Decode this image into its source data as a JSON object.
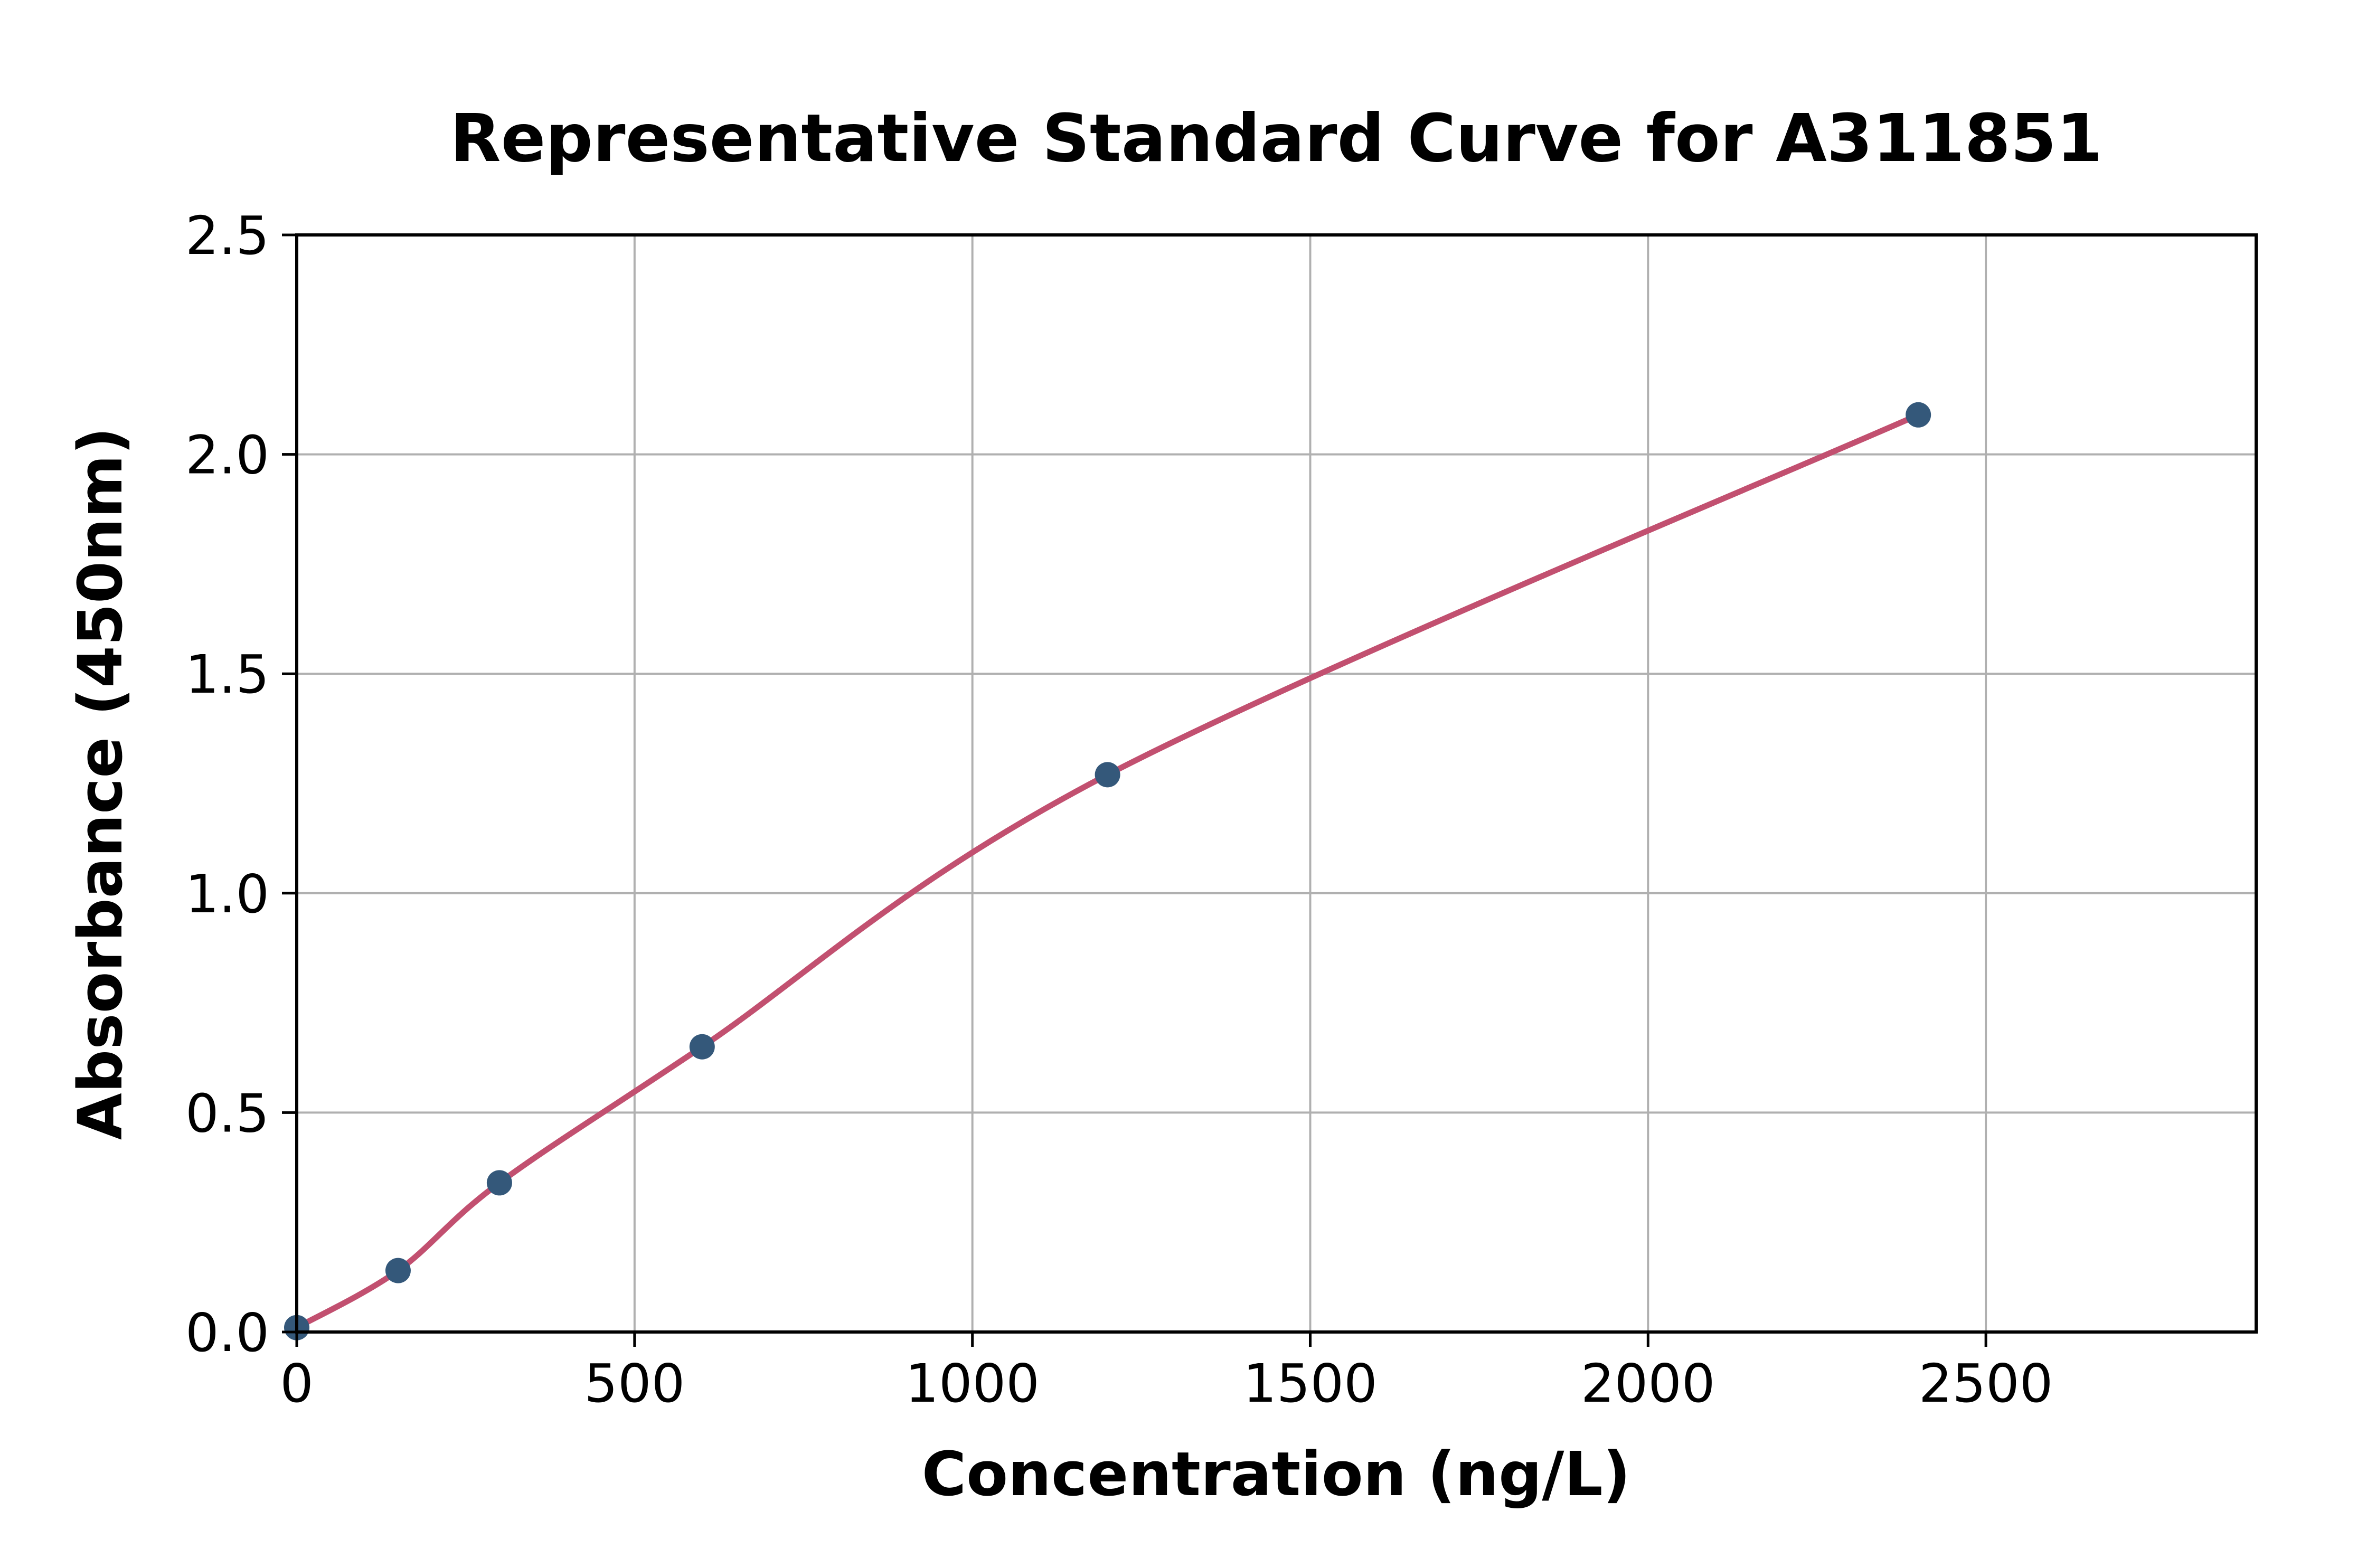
{
  "figure": {
    "background": "#ffffff"
  },
  "chart_data": {
    "type": "scatter",
    "title": "Representative Standard Curve for A311851",
    "xlabel": "Concentration (ng/L)",
    "ylabel": "Absorbance (450nm)",
    "xlim": [
      0,
      2900
    ],
    "ylim": [
      0,
      2.5
    ],
    "x_ticks": [
      0,
      500,
      1000,
      1500,
      2000,
      2500
    ],
    "x_tick_labels": [
      "0",
      "500",
      "1000",
      "1500",
      "2000",
      "2500"
    ],
    "y_ticks": [
      0.0,
      0.5,
      1.0,
      1.5,
      2.0,
      2.5
    ],
    "y_tick_labels": [
      "0.0",
      "0.5",
      "1.0",
      "1.5",
      "2.0",
      "2.5"
    ],
    "grid": true,
    "legend": false,
    "series": [
      {
        "name": "standards",
        "type": "scatter",
        "x": [
          0,
          150,
          300,
          600,
          1200,
          2400
        ],
        "y": [
          0.01,
          0.14,
          0.34,
          0.65,
          1.27,
          2.09
        ]
      },
      {
        "name": "fitted-curve",
        "type": "line",
        "style": "smooth-through-points"
      }
    ],
    "colors": {
      "marker": "#34587a",
      "line": "#c25070",
      "grid": "#b0b0b0",
      "axis": "#000000",
      "text": "#000000"
    }
  }
}
